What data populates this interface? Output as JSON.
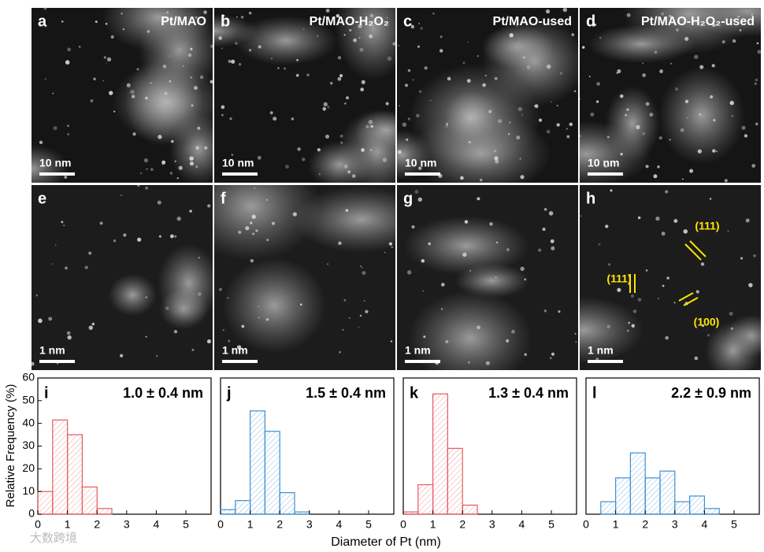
{
  "panels": [
    {
      "letter": "a",
      "title": "Pt/MAO",
      "scale": "10 nm"
    },
    {
      "letter": "b",
      "title": "Pt/MAO-H₂O₂",
      "scale": "10 nm"
    },
    {
      "letter": "c",
      "title": "Pt/MAO-used",
      "scale": "10 nm"
    },
    {
      "letter": "d",
      "title": "Pt/MAO-H₂O₂-used",
      "scale": "10 nm"
    },
    {
      "letter": "e",
      "scale": "1 nm"
    },
    {
      "letter": "f",
      "scale": "1 nm"
    },
    {
      "letter": "g",
      "scale": "1 nm"
    },
    {
      "letter": "h",
      "scale": "1 nm",
      "annotations": [
        "(111)",
        "(111)",
        "(100)"
      ]
    }
  ],
  "shared": {
    "ylabel": "Relative Frequency (%)",
    "xlabel": "Diameter of Pt (nm)"
  },
  "watermark": "大数跨境",
  "chart_data": [
    {
      "type": "histogram",
      "letter": "i",
      "annotation": "1.0 ± 0.4 nm",
      "color": "#e8595e",
      "bins": [
        0,
        0.5,
        1,
        1.5,
        2,
        2.5
      ],
      "values": [
        10,
        41.5,
        35,
        12,
        2.5
      ],
      "xlim": [
        0,
        5.85
      ],
      "ylim": [
        0,
        60
      ],
      "xticks": [
        0,
        1,
        2,
        3,
        4,
        5
      ],
      "yticks": [
        0,
        10,
        20,
        30,
        40,
        50,
        60
      ]
    },
    {
      "type": "histogram",
      "letter": "j",
      "annotation": "1.5 ± 0.4 nm",
      "color": "#3d8fd1",
      "bins": [
        0,
        0.5,
        1,
        1.5,
        2,
        2.5,
        3
      ],
      "values": [
        2,
        6,
        45.5,
        36.5,
        9.5,
        1
      ],
      "xlim": [
        0,
        5.85
      ],
      "ylim": [
        0,
        60
      ],
      "xticks": [
        0,
        1,
        2,
        3,
        4,
        5
      ]
    },
    {
      "type": "histogram",
      "letter": "k",
      "annotation": "1.3 ± 0.4 nm",
      "color": "#e8595e",
      "bins": [
        0,
        0.5,
        1,
        1.5,
        2,
        2.5
      ],
      "values": [
        1,
        13,
        53,
        29,
        4
      ],
      "xlim": [
        0,
        5.85
      ],
      "ylim": [
        0,
        60
      ],
      "xticks": [
        0,
        1,
        2,
        3,
        4,
        5
      ]
    },
    {
      "type": "histogram",
      "letter": "l",
      "annotation": "2.2 ± 0.9 nm",
      "color": "#3d8fd1",
      "bins": [
        0.5,
        1,
        1.5,
        2,
        2.5,
        3,
        3.5,
        4,
        4.5
      ],
      "values": [
        5.5,
        16,
        27,
        16,
        19,
        5.5,
        8,
        2.5
      ],
      "xlim": [
        0,
        5.85
      ],
      "ylim": [
        0,
        60
      ],
      "xticks": [
        0,
        1,
        2,
        3,
        4,
        5
      ]
    }
  ]
}
